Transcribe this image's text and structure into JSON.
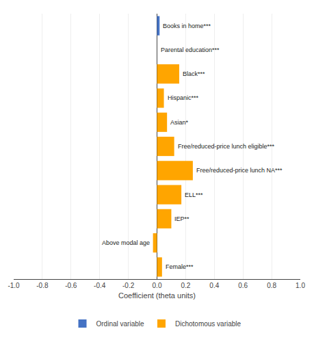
{
  "chart_data": {
    "type": "bar",
    "orientation": "horizontal",
    "categories": [
      "Books in home***",
      "Parental education***",
      "Black***",
      "Hispanic***",
      "Asian*",
      "Free/reduced-price lunch eligible***",
      "Free/reduced-price lunch NA***",
      "ELL***",
      "IEP**",
      "Above modal age",
      "Female***"
    ],
    "series": [
      {
        "name": "Ordinal variable",
        "color": "#4472c4",
        "values": [
          0.018,
          0.0,
          null,
          null,
          null,
          null,
          null,
          null,
          null,
          null,
          null
        ]
      },
      {
        "name": "Dichotomous variable",
        "color": "#FFA500",
        "values": [
          null,
          null,
          0.155,
          0.048,
          0.07,
          0.12,
          0.25,
          0.17,
          0.1,
          -0.028,
          0.035
        ]
      }
    ],
    "xlabel": "Coefficient (theta units)",
    "xlim": [
      -1.0,
      1.0
    ],
    "xticks": [
      {
        "value": -1.0,
        "label": "-1.0"
      },
      -0.8,
      -0.6,
      -0.4,
      -0.2,
      {
        "value": 0.0,
        "label": "0.0"
      },
      0.2,
      0.4,
      0.6,
      0.8,
      {
        "value": 1.0,
        "label": "1.0"
      }
    ],
    "grid": true,
    "legend": "lower center",
    "tick_labels": "x"
  }
}
